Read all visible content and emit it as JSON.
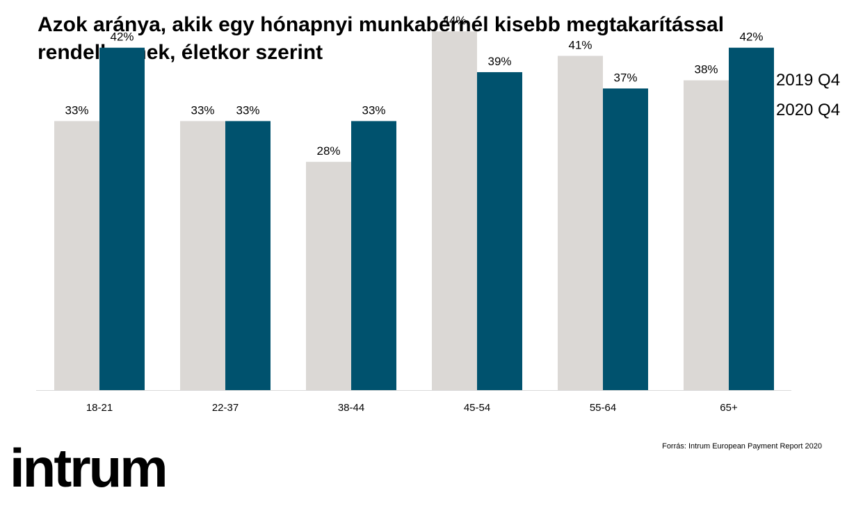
{
  "title": {
    "line1": "Azok aránya, akik egy hónapnyi munkabérnél kisebb megtakarítással",
    "line2": "rendelkeznek, életkor szerint"
  },
  "legend": [
    {
      "label": "2019 Q4",
      "color": "#dbd8d5"
    },
    {
      "label": "2020 Q4",
      "color": "#00526e"
    }
  ],
  "source": "Forrás: Intrum European Payment Report 2020",
  "logo": "intrum",
  "chart_data": {
    "type": "bar",
    "categories": [
      "18-21",
      "22-37",
      "38-44",
      "45-54",
      "55-64",
      "65+"
    ],
    "series": [
      {
        "name": "2019 Q4",
        "values": [
          33,
          33,
          28,
          44,
          41,
          38
        ],
        "labels": [
          "33%",
          "33%",
          "28%",
          "44%",
          "41%",
          "38%"
        ],
        "color": "#dbd8d5"
      },
      {
        "name": "2020 Q4",
        "values": [
          42,
          33,
          33,
          39,
          37,
          42
        ],
        "labels": [
          "42%",
          "33%",
          "33%",
          "39%",
          "37%",
          "42%"
        ],
        "color": "#00526e"
      }
    ],
    "ylim": [
      0,
      47
    ],
    "unit": "%",
    "grid": false,
    "legend_position": "top-right",
    "xlabel": "",
    "ylabel": ""
  }
}
